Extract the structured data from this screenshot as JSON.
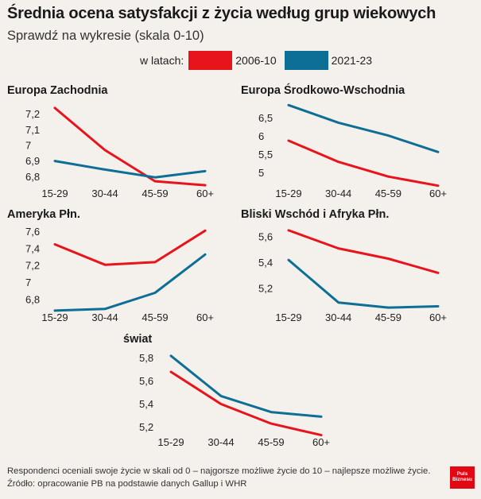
{
  "title": "Średnia ocena satysfakcji z życia według grup wiekowych",
  "subtitle": "Sprawdź na wykresie (skala 0-10)",
  "legend": {
    "label": "w latach:",
    "items": [
      {
        "name": "2006-10",
        "color": "#e8141c"
      },
      {
        "name": "2021-23",
        "color": "#0e6f96"
      }
    ]
  },
  "chart_data": [
    {
      "type": "line",
      "title": "Europa Zachodnia",
      "categories": [
        "15-29",
        "30-44",
        "45-59",
        "60+"
      ],
      "yticks": [
        "6,8",
        "6,9",
        "7",
        "7,1",
        "7,2"
      ],
      "ytick_values": [
        6.8,
        6.9,
        7.0,
        7.1,
        7.2
      ],
      "ylim": [
        6.73,
        7.27
      ],
      "series": [
        {
          "name": "2006-10",
          "values": [
            7.24,
            6.97,
            6.77,
            6.745
          ]
        },
        {
          "name": "2021-23",
          "values": [
            6.9,
            6.845,
            6.795,
            6.835
          ]
        }
      ]
    },
    {
      "type": "line",
      "title": "Europa Środkowo-Wschodnia",
      "categories": [
        "15-29",
        "30-44",
        "45-59",
        "60+"
      ],
      "yticks": [
        "5",
        "5,5",
        "6",
        "6,5"
      ],
      "ytick_values": [
        5.0,
        5.5,
        6.0,
        6.5
      ],
      "ylim": [
        4.6,
        6.9
      ],
      "series": [
        {
          "name": "2006-10",
          "values": [
            5.88,
            5.3,
            4.9,
            4.65
          ]
        },
        {
          "name": "2021-23",
          "values": [
            6.85,
            6.37,
            6.02,
            5.57
          ]
        }
      ]
    },
    {
      "type": "line",
      "title": "Ameryka Płn.",
      "categories": [
        "15-29",
        "30-44",
        "45-59",
        "60+"
      ],
      "yticks": [
        "6,8",
        "7",
        "7,2",
        "7,4",
        "7,6"
      ],
      "ytick_values": [
        6.8,
        7.0,
        7.2,
        7.4,
        7.6
      ],
      "ylim": [
        6.66,
        7.66
      ],
      "series": [
        {
          "name": "2006-10",
          "values": [
            7.45,
            7.21,
            7.24,
            7.61
          ]
        },
        {
          "name": "2021-23",
          "values": [
            6.67,
            6.69,
            6.88,
            7.33
          ]
        }
      ]
    },
    {
      "type": "line",
      "title": "Bliski Wschód i Afryka Płn.",
      "categories": [
        "15-29",
        "30-44",
        "45-59",
        "60+"
      ],
      "yticks": [
        "5,2",
        "5,4",
        "5,6"
      ],
      "ytick_values": [
        5.2,
        5.4,
        5.6
      ],
      "ylim": [
        5.02,
        5.68
      ],
      "series": [
        {
          "name": "2006-10",
          "values": [
            5.65,
            5.51,
            5.43,
            5.32
          ]
        },
        {
          "name": "2021-23",
          "values": [
            5.42,
            5.09,
            5.05,
            5.06
          ]
        }
      ]
    },
    {
      "type": "line",
      "title": "świat",
      "categories": [
        "15-29",
        "30-44",
        "45-59",
        "60+"
      ],
      "yticks": [
        "5,2",
        "5,4",
        "5,6",
        "5,8"
      ],
      "ytick_values": [
        5.2,
        5.4,
        5.6,
        5.8
      ],
      "ylim": [
        5.12,
        5.86
      ],
      "series": [
        {
          "name": "2006-10",
          "values": [
            5.68,
            5.4,
            5.23,
            5.13
          ]
        },
        {
          "name": "2021-23",
          "values": [
            5.82,
            5.47,
            5.33,
            5.29
          ]
        }
      ]
    }
  ],
  "footnote": {
    "line1": "Respondenci oceniali swoje życie w skali od 0 – najgorsze możliwe życie do 10 – najlepsze możliwe życie.",
    "line2": "Źródło: opracowanie PB na podstawie danych Gallup i WHR"
  },
  "logo": {
    "line1": "Puls",
    "line2": "Biznesu"
  }
}
